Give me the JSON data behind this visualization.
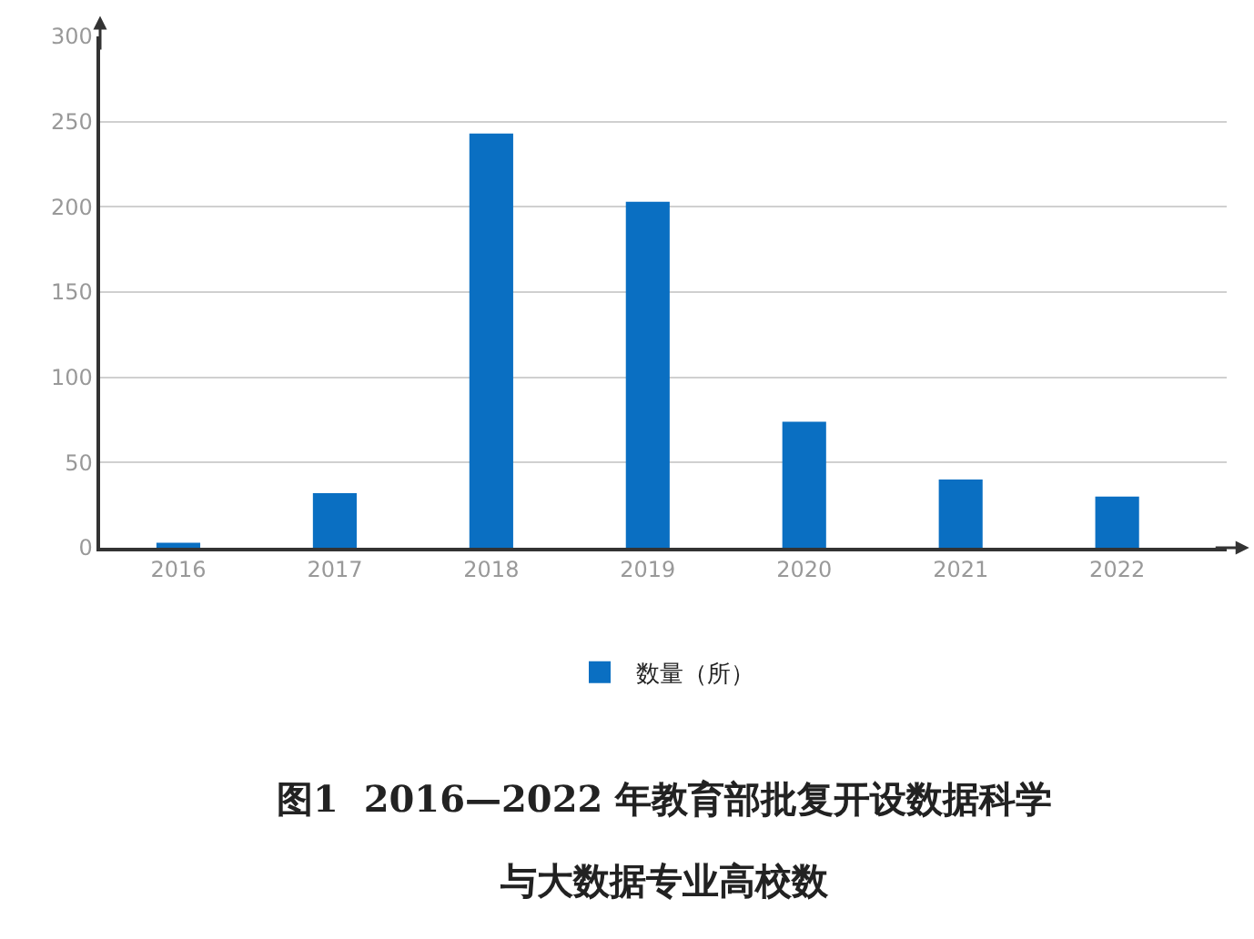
{
  "chart_data": {
    "type": "bar",
    "categories": [
      "2016",
      "2017",
      "2018",
      "2019",
      "2020",
      "2021",
      "2022"
    ],
    "series": [
      {
        "name": "数量（所）",
        "color": "#0a6fc2",
        "values": [
          3,
          32,
          243,
          203,
          74,
          40,
          30
        ]
      }
    ],
    "ylim": [
      0,
      300
    ],
    "yticks": [
      0,
      50,
      100,
      150,
      200,
      250,
      300
    ],
    "grid": "y",
    "legend": "bottom",
    "annotations": [
      "图1  2016—2022 年教育部批复开设数据科学",
      "与大数据专业高校数"
    ]
  }
}
